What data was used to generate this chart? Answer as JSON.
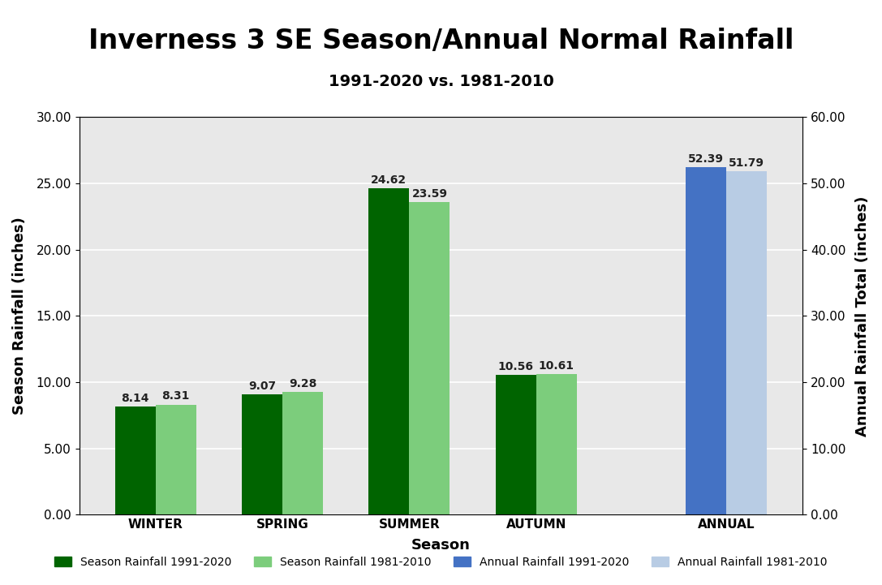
{
  "title": "Inverness 3 SE Season/Annual Normal Rainfall",
  "subtitle": "1991-2020 vs. 1981-2010",
  "xlabel": "Season",
  "ylabel_left": "Season Rainfall (inches)",
  "ylabel_right": "Annual Rainfall Total (inches)",
  "seasons": [
    "WINTER",
    "SPRING",
    "SUMMER",
    "AUTUMN"
  ],
  "season_new": [
    8.14,
    9.07,
    24.62,
    10.56
  ],
  "season_old": [
    8.31,
    9.28,
    23.59,
    10.61
  ],
  "annual_new": 52.39,
  "annual_old": 51.79,
  "color_season_new": "#006400",
  "color_season_old": "#7CCD7C",
  "color_annual_new": "#4472C4",
  "color_annual_old": "#B8CCE4",
  "ylim_left": [
    0,
    30
  ],
  "ylim_right": [
    0,
    60
  ],
  "yticks_left": [
    0.0,
    5.0,
    10.0,
    15.0,
    20.0,
    25.0,
    30.0
  ],
  "yticks_right": [
    0.0,
    10.0,
    20.0,
    30.0,
    40.0,
    50.0,
    60.0
  ],
  "bar_width": 0.32,
  "legend_labels": [
    "Season Rainfall 1991-2020",
    "Season Rainfall 1981-2010",
    "Annual Rainfall 1991-2020",
    "Annual Rainfall 1981-2010"
  ],
  "background_color": "#E8E8E8",
  "title_fontsize": 24,
  "subtitle_fontsize": 14,
  "label_fontsize": 13,
  "tick_fontsize": 11,
  "annot_fontsize": 10
}
